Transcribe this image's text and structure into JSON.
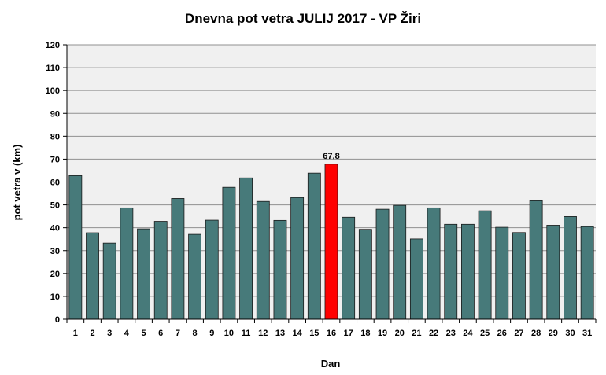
{
  "chart_data": {
    "type": "bar",
    "title": "Dnevna pot vetra JULIJ 2017 - VP Žiri",
    "xlabel": "Dan",
    "ylabel": "pot vetra  v (km)",
    "ylim": [
      0,
      120
    ],
    "yticks": [
      0,
      10,
      20,
      30,
      40,
      50,
      60,
      70,
      80,
      90,
      100,
      110,
      120
    ],
    "grid": true,
    "legend": "none",
    "categories": [
      "1",
      "2",
      "3",
      "4",
      "5",
      "6",
      "7",
      "8",
      "9",
      "10",
      "11",
      "12",
      "13",
      "14",
      "15",
      "16",
      "17",
      "18",
      "19",
      "20",
      "21",
      "22",
      "23",
      "24",
      "25",
      "26",
      "27",
      "28",
      "29",
      "30",
      "31"
    ],
    "values": [
      62.8,
      37.8,
      33.3,
      48.7,
      39.5,
      42.8,
      52.8,
      37.1,
      43.3,
      57.7,
      61.8,
      51.5,
      43.2,
      53.2,
      63.9,
      67.8,
      44.6,
      39.3,
      48.1,
      49.8,
      35.1,
      48.7,
      41.5,
      41.5,
      47.4,
      40.2,
      37.9,
      51.8,
      41.1,
      44.9,
      40.5
    ],
    "highlight_index": 15,
    "data_labels": [
      {
        "index": 15,
        "text": "67,8"
      }
    ],
    "colors": {
      "bar": "#477a7a",
      "highlight": "#ff0000",
      "plot_bg": "#f0f0f0",
      "grid": "#909090"
    }
  }
}
